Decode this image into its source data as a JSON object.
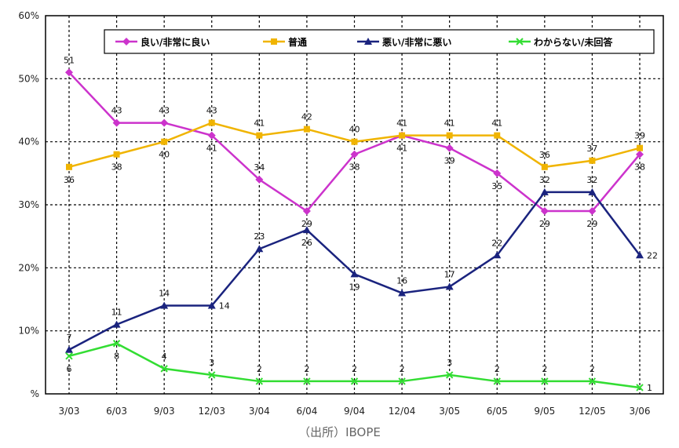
{
  "chart_data": {
    "type": "line",
    "categories": [
      "3/03",
      "6/03",
      "9/03",
      "12/03",
      "3/04",
      "6/04",
      "9/04",
      "12/04",
      "3/05",
      "6/05",
      "9/05",
      "12/05",
      "3/06"
    ],
    "ylim": [
      0,
      60
    ],
    "yticks": [
      "%",
      "10%",
      "20%",
      "30%",
      "40%",
      "50%",
      "60%"
    ],
    "grid": true,
    "legend_position": "top",
    "series": [
      {
        "name": "良い/非常に良い",
        "color": "#cc33cc",
        "marker": "diamond",
        "values": [
          51,
          43,
          43,
          41,
          34,
          29,
          38,
          41,
          39,
          35,
          29,
          29,
          38
        ]
      },
      {
        "name": "普通",
        "color": "#f0b400",
        "marker": "square",
        "values": [
          36,
          38,
          40,
          43,
          41,
          42,
          40,
          41,
          41,
          41,
          36,
          37,
          39
        ]
      },
      {
        "name": "悪い/非常に悪い",
        "color": "#1a237e",
        "marker": "triangle",
        "values": [
          7,
          11,
          14,
          14,
          23,
          26,
          19,
          16,
          17,
          22,
          32,
          32,
          22
        ]
      },
      {
        "name": "わからない/未回答",
        "color": "#33dd33",
        "marker": "x",
        "values": [
          6,
          8,
          4,
          3,
          2,
          2,
          2,
          2,
          3,
          2,
          2,
          2,
          1
        ]
      }
    ]
  },
  "source_note": "（出所）IBOPE"
}
